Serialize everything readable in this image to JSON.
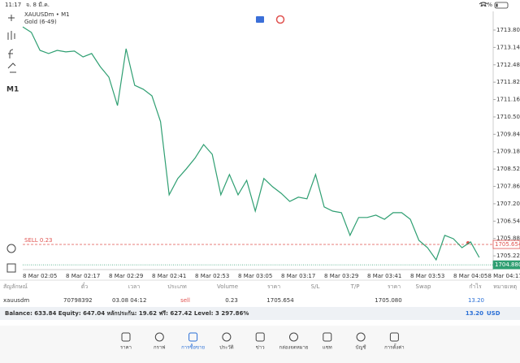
{
  "status_bar": {
    "time": "11:17",
    "date": "จ. 8 มี.ค.",
    "battery": "11%"
  },
  "sidebar": {
    "timeframe": "M1"
  },
  "chart_data": {
    "type": "line",
    "title": "XAUUSDm • M1",
    "subtitle": "Gold (6-49)",
    "color": "#2f9f72",
    "categories": [
      null,
      null,
      "8 Mar 02:05",
      null,
      null,
      null,
      null,
      "8 Mar 02:17",
      null,
      null,
      null,
      null,
      "8 Mar 02:29",
      null,
      null,
      null,
      null,
      "8 Mar 02:41",
      null,
      null,
      null,
      null,
      "8 Mar 02:53",
      null,
      null,
      null,
      null,
      "8 Mar 03:05",
      null,
      null,
      null,
      null,
      "8 Mar 03:17",
      null,
      null,
      null,
      null,
      "8 Mar 03:29",
      null,
      null,
      null,
      null,
      "8 Mar 03:41",
      null,
      null,
      null,
      null,
      "8 Mar 03:53",
      null,
      null,
      null,
      null,
      "8 Mar 04:05",
      null,
      null,
      null,
      "8 Mar 04:17"
    ],
    "values": [
      1713.92,
      1713.71,
      1713.03,
      1712.91,
      1713.03,
      1712.97,
      1713.0,
      1712.78,
      1712.91,
      1712.41,
      1712.01,
      1710.93,
      1713.09,
      1711.7,
      1711.55,
      1711.3,
      1710.32,
      1707.54,
      1708.16,
      1708.53,
      1708.93,
      1709.45,
      1709.08,
      1707.54,
      1708.31,
      1707.54,
      1708.09,
      1706.92,
      1708.16,
      1707.85,
      1707.6,
      1707.29,
      1707.45,
      1707.39,
      1708.31,
      1707.08,
      1706.92,
      1706.86,
      1706.0,
      1706.68,
      1706.68,
      1706.77,
      1706.61,
      1706.86,
      1706.86,
      1706.61,
      1705.81,
      1705.53,
      1705.07,
      1706.0,
      1705.87,
      1705.53,
      1705.75,
      1705.16,
      null,
      null,
      null
    ],
    "ylim": [
      1704.76,
      1714.51
    ],
    "yticks": [
      {
        "value": 1713.8,
        "label": "1713.800"
      },
      {
        "value": 1713.14,
        "label": "1713.140"
      },
      {
        "value": 1712.48,
        "label": "1712.480"
      },
      {
        "value": 1711.82,
        "label": "1711.820"
      },
      {
        "value": 1711.16,
        "label": "1711.160"
      },
      {
        "value": 1710.5,
        "label": "1710.500"
      },
      {
        "value": 1709.84,
        "label": "1709.840"
      },
      {
        "value": 1709.18,
        "label": "1709.180"
      },
      {
        "value": 1708.52,
        "label": "1708.520"
      },
      {
        "value": 1707.86,
        "label": "1707.860"
      },
      {
        "value": 1707.2,
        "label": "1707.200"
      },
      {
        "value": 1706.54,
        "label": "1706.540"
      },
      {
        "value": 1705.88,
        "label": "1705.880"
      },
      {
        "value": 1705.22,
        "label": "1705.220"
      }
    ],
    "price_lines": [
      {
        "label": "SELL 0.23",
        "value": 1705.654,
        "value_label": "1705.654",
        "color": "#e0524f",
        "style": "dashed"
      },
      {
        "value": 1704.88,
        "value_label": "1704.880",
        "color": "#2f9f72",
        "style": "dotted"
      }
    ]
  },
  "table": {
    "headers": [
      "สัญลักษณ์",
      "ตั๋ว",
      "เวลา",
      "ประเภท",
      "Volume",
      "ราคา",
      "S/L",
      "T/P",
      "ราคา",
      "Swap",
      "กำไร",
      "หมายเหตุ"
    ],
    "position": {
      "symbol": "xauusdm",
      "ticket": "70798392",
      "time": "03.08 04:12",
      "type": "sell",
      "volume": "0.23",
      "open_price": "1705.654",
      "current_price": "1705.080",
      "profit": "13.20"
    }
  },
  "summary": {
    "text": "Balance: 633.84 Equity: 647.04 หลักประกัน: 19.62 ฟรี: 627.42 Level: 3 297.86%",
    "profit": "13.20",
    "currency": "USD"
  },
  "nav": [
    {
      "label": "ราคา"
    },
    {
      "label": "กราฟ"
    },
    {
      "label": "การซื้อขาย",
      "active": true
    },
    {
      "label": "ประวัติ"
    },
    {
      "label": "ข่าว"
    },
    {
      "label": "กล่องจดหมาย"
    },
    {
      "label": "แชท"
    },
    {
      "label": "บัญชี"
    },
    {
      "label": "การตั้งค่า"
    }
  ]
}
